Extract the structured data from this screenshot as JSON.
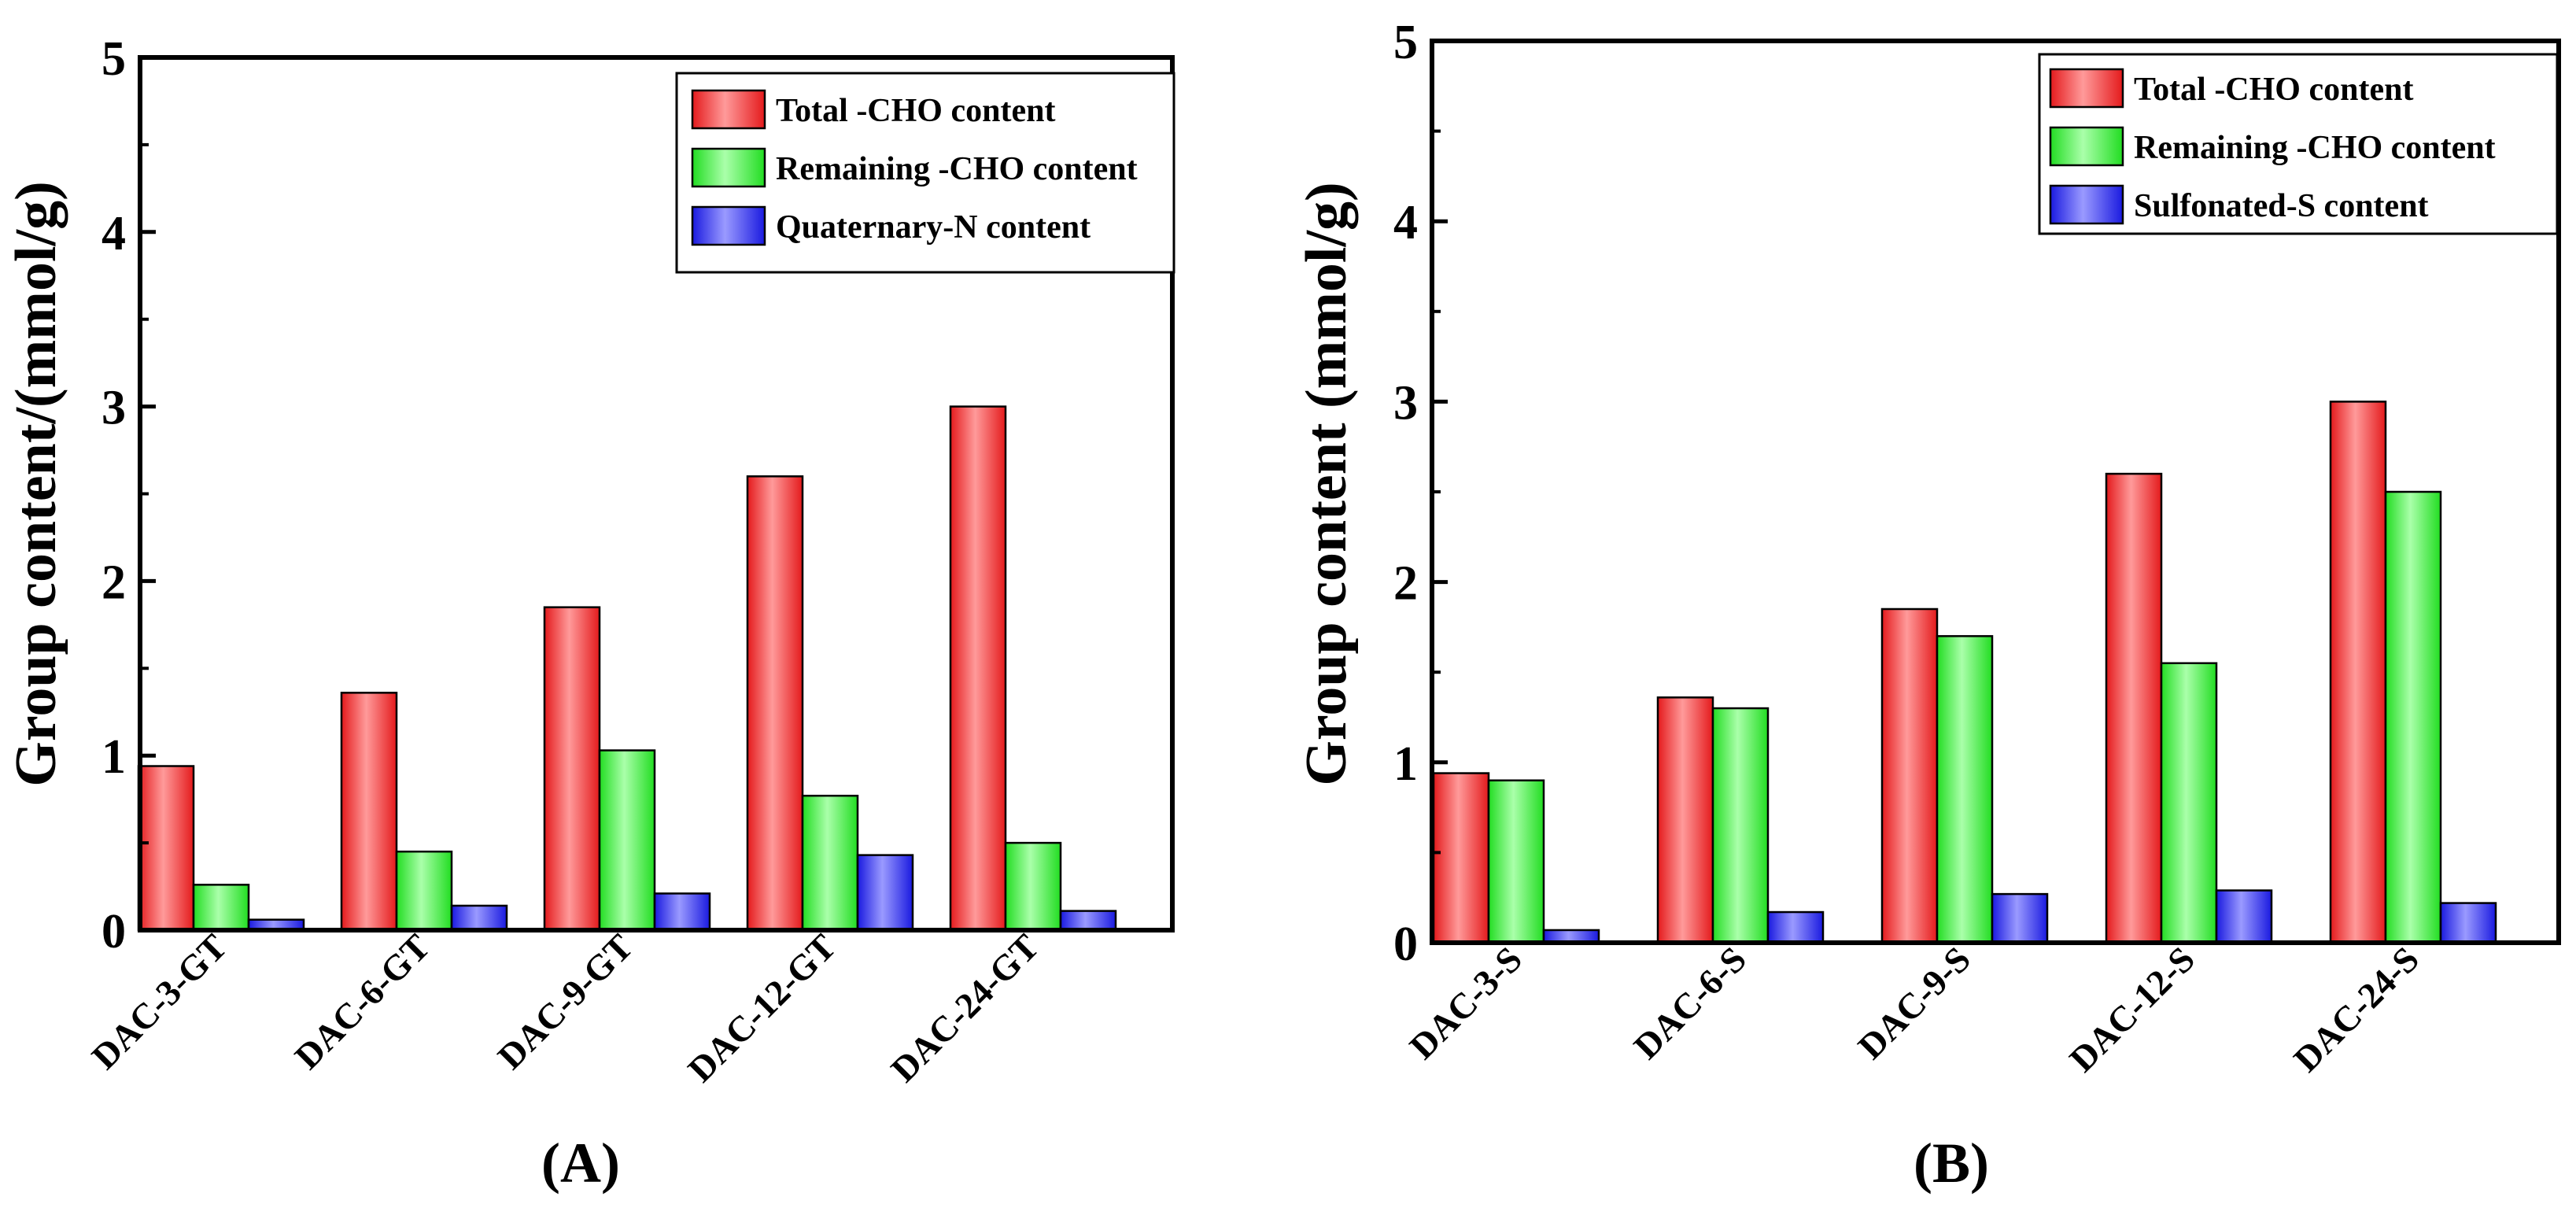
{
  "colors": {
    "series": [
      "#e41a1c",
      "#22dd22",
      "#1a1ae0"
    ],
    "series_light": [
      "#ff9a9a",
      "#aaffaa",
      "#9a9aff"
    ],
    "axis": "#000000"
  },
  "chart_data": [
    {
      "type": "bar",
      "panel_label": "(A)",
      "title": "",
      "ylabel": "Group content/(mmol/g)",
      "xlabel": "",
      "ylim": [
        0,
        5
      ],
      "yticks": [
        "0",
        "1",
        "2",
        "3",
        "4",
        "5"
      ],
      "legend_position": "top-right",
      "categories": [
        "DAC-3-GT",
        "DAC-6-GT",
        "DAC-9-GT",
        "DAC-12-GT",
        "DAC-24-GT"
      ],
      "series": [
        {
          "name": "Total -CHO content",
          "values": [
            0.94,
            1.36,
            1.85,
            2.6,
            3.0
          ]
        },
        {
          "name": "Remaining -CHO content",
          "values": [
            0.26,
            0.45,
            1.03,
            0.77,
            0.5
          ]
        },
        {
          "name": "Quaternary-N content",
          "values": [
            0.06,
            0.14,
            0.21,
            0.43,
            0.11
          ]
        }
      ]
    },
    {
      "type": "bar",
      "panel_label": "(B)",
      "title": "",
      "ylabel": "Group content (mmol/g)",
      "xlabel": "",
      "ylim": [
        0,
        5
      ],
      "yticks": [
        "0",
        "1",
        "2",
        "3",
        "4",
        "5"
      ],
      "legend_position": "top-right",
      "categories": [
        "DAC-3-S",
        "DAC-6-S",
        "DAC-9-S",
        "DAC-12-S",
        "DAC-24-S"
      ],
      "series": [
        {
          "name": "Total -CHO content",
          "values": [
            0.94,
            1.36,
            1.85,
            2.6,
            3.0
          ]
        },
        {
          "name": "Remaining -CHO content",
          "values": [
            0.9,
            1.3,
            1.7,
            1.55,
            2.5
          ]
        },
        {
          "name": "Sulfonated-S content",
          "values": [
            0.07,
            0.17,
            0.27,
            0.29,
            0.22
          ]
        }
      ]
    }
  ]
}
